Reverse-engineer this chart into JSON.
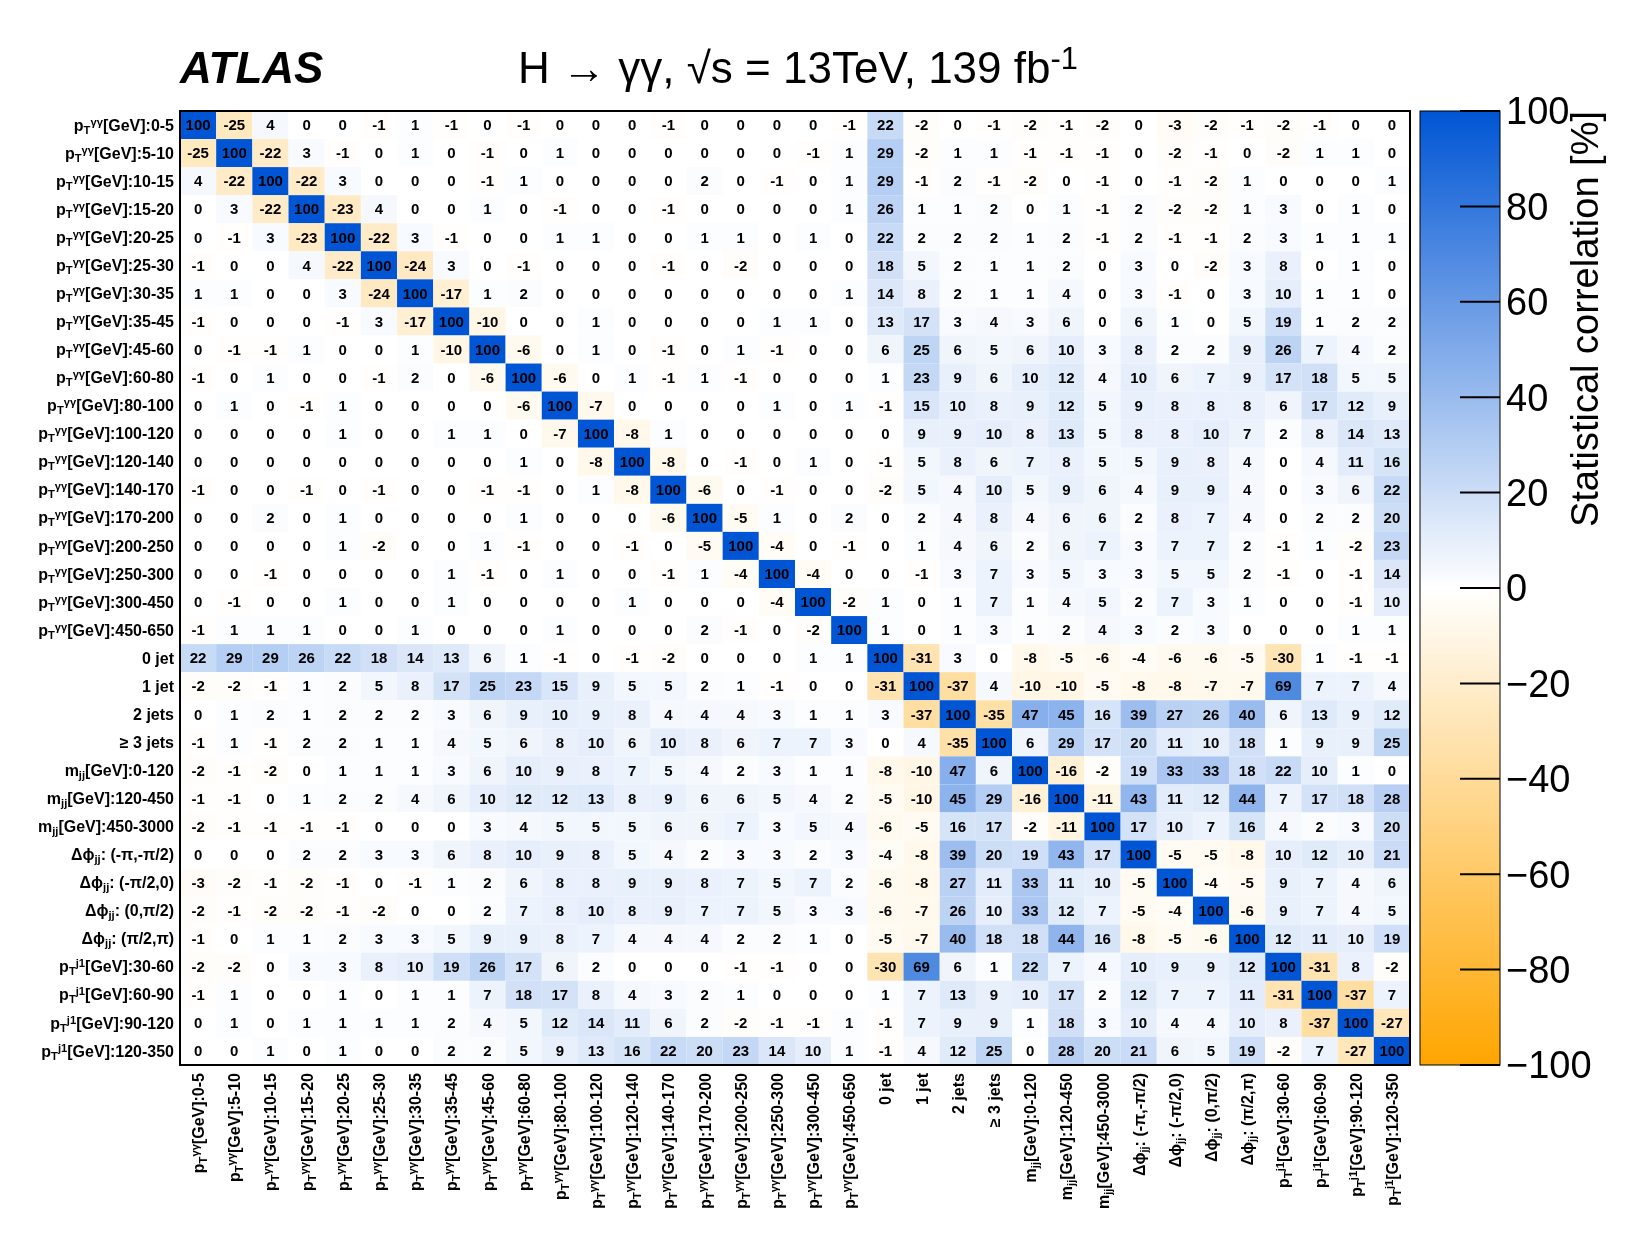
{
  "chart_data": {
    "type": "heatmap",
    "title": "H → γγ, √s = 13TeV, 139 fb$^{-1}$",
    "annotations": [
      "ATLAS"
    ],
    "clabel": "Statistical correlation [%]",
    "categories": [
      "p$_{T}$$^{γγ}$[GeV]:0-5",
      "p$_{T}$$^{γγ}$[GeV]:5-10",
      "p$_{T}$$^{γγ}$[GeV]:10-15",
      "p$_{T}$$^{γγ}$[GeV]:15-20",
      "p$_{T}$$^{γγ}$[GeV]:20-25",
      "p$_{T}$$^{γγ}$[GeV]:25-30",
      "p$_{T}$$^{γγ}$[GeV]:30-35",
      "p$_{T}$$^{γγ}$[GeV]:35-45",
      "p$_{T}$$^{γγ}$[GeV]:45-60",
      "p$_{T}$$^{γγ}$[GeV]:60-80",
      "p$_{T}$$^{γγ}$[GeV]:80-100",
      "p$_{T}$$^{γγ}$[GeV]:100-120",
      "p$_{T}$$^{γγ}$[GeV]:120-140",
      "p$_{T}$$^{γγ}$[GeV]:140-170",
      "p$_{T}$$^{γγ}$[GeV]:170-200",
      "p$_{T}$$^{γγ}$[GeV]:200-250",
      "p$_{T}$$^{γγ}$[GeV]:250-300",
      "p$_{T}$$^{γγ}$[GeV]:300-450",
      "p$_{T}$$^{γγ}$[GeV]:450-650",
      "0 jet",
      "1 jet",
      "2 jets",
      "≥ 3 jets",
      "m$_{jj}$[GeV]:0-120",
      "m$_{jj}$[GeV]:120-450",
      "m$_{jj}$[GeV]:450-3000",
      "Δϕ$_{jj}$: (-π,-π/2)",
      "Δϕ$_{jj}$: (-π/2,0)",
      "Δϕ$_{jj}$: (0,π/2)",
      "Δϕ$_{jj}$: (π/2,π)",
      "p$_{T}$$^{j1}$[GeV]:30-60",
      "p$_{T}$$^{j1}$[GeV]:60-90",
      "p$_{T}$$^{j1}$[GeV]:90-120",
      "p$_{T}$$^{j1}$[GeV]:120-350"
    ],
    "y_categories": [
      "p$_{T}$$^{γγ}$[GeV]:0-5",
      "p$_{T}$$^{γγ}$[GeV]:5-10",
      "p$_{T}$$^{γγ}$[GeV]:10-15",
      "p$_{T}$$^{γγ}$[GeV]:15-20",
      "p$_{T}$$^{γγ}$[GeV]:20-25",
      "p$_{T}$$^{γγ}$[GeV]:25-30",
      "p$_{T}$$^{γγ}$[GeV]:30-35",
      "p$_{T}$$^{γγ}$[GeV]:35-45",
      "p$_{T}$$^{γγ}$[GeV]:45-60",
      "p$_{T}$$^{γγ}$[GeV]:60-80",
      "p$_{T}$$^{γγ}$[GeV]:80-100",
      "p$_{T}$$^{γγ}$[GeV]:100-120",
      "p$_{T}$$^{γγ}$[GeV]:120-140",
      "p$_{T}$$^{γγ}$[GeV]:140-170",
      "p$_{T}$$^{γγ}$[GeV]:170-200",
      "p$_{T}$$^{γγ}$[GeV]:200-250",
      "p$_{T}$$^{γγ}$[GeV]:250-300",
      "p$_{T}$$^{γγ}$[GeV]:300-450",
      "p$_{T}$$^{γγ}$[GeV]:450-650",
      "0 jet",
      "1 jet",
      "2 jets",
      "≥ 3 jets",
      "m$_{jj}$[GeV]:0-120",
      "m$_{jj}$[GeV]:120-450",
      "m$_{jj}$[GeV]:450-3000",
      "Δϕ$_{jj}$: (-π,-π/2)",
      "Δϕ$_{jj}$: (-π/2,0)",
      "Δϕ$_{jj}$: (0,π/2)",
      "Δϕ$_{jj}$: (π/2,π)",
      "p$_{T}$$^{j1}$[GeV]:30-60",
      "p$_{T}$$^{j1}$[GeV]:60-90",
      "p$_{T}$$^{j1}$[GeV]:90-120",
      "p$_{T}$$^{j1}$[GeV]:120-350"
    ],
    "cells": [
      [
        100,
        -25,
        4,
        0,
        0,
        -1,
        1,
        -1,
        0,
        -1,
        0,
        0,
        0,
        -1,
        0,
        0,
        0,
        0,
        -1,
        22,
        -2,
        0,
        -1,
        -2,
        -1,
        -2,
        0,
        -3,
        -2,
        -1,
        -2,
        -1,
        0,
        0
      ],
      [
        -25,
        100,
        -22,
        3,
        -1,
        0,
        1,
        0,
        -1,
        0,
        1,
        0,
        0,
        0,
        0,
        0,
        0,
        -1,
        1,
        29,
        -2,
        1,
        1,
        -1,
        -1,
        -1,
        0,
        -2,
        -1,
        0,
        -2,
        1,
        1,
        0
      ],
      [
        4,
        -22,
        100,
        -22,
        3,
        0,
        0,
        0,
        -1,
        1,
        0,
        0,
        0,
        0,
        2,
        0,
        -1,
        0,
        1,
        29,
        -1,
        2,
        -1,
        -2,
        0,
        -1,
        0,
        -1,
        -2,
        1,
        0,
        0,
        0,
        1
      ],
      [
        0,
        3,
        -22,
        100,
        -23,
        4,
        0,
        0,
        1,
        0,
        -1,
        0,
        0,
        -1,
        0,
        0,
        0,
        0,
        1,
        26,
        1,
        1,
        2,
        0,
        1,
        -1,
        2,
        -2,
        -2,
        1,
        3,
        0,
        1,
        0
      ],
      [
        0,
        -1,
        3,
        -23,
        100,
        -22,
        3,
        -1,
        0,
        0,
        1,
        1,
        0,
        0,
        1,
        1,
        0,
        1,
        0,
        22,
        2,
        2,
        2,
        1,
        2,
        -1,
        2,
        -1,
        -1,
        2,
        3,
        1,
        1,
        1
      ],
      [
        -1,
        0,
        0,
        4,
        -22,
        100,
        -24,
        3,
        0,
        -1,
        0,
        0,
        0,
        -1,
        0,
        -2,
        0,
        0,
        0,
        18,
        5,
        2,
        1,
        1,
        2,
        0,
        3,
        0,
        -2,
        3,
        8,
        0,
        1,
        0
      ],
      [
        1,
        1,
        0,
        0,
        3,
        -24,
        100,
        -17,
        1,
        2,
        0,
        0,
        0,
        0,
        0,
        0,
        0,
        0,
        1,
        14,
        8,
        2,
        1,
        1,
        4,
        0,
        3,
        -1,
        0,
        3,
        10,
        1,
        1,
        0
      ],
      [
        -1,
        0,
        0,
        0,
        -1,
        3,
        -17,
        100,
        -10,
        0,
        0,
        1,
        0,
        0,
        0,
        0,
        1,
        1,
        0,
        13,
        17,
        3,
        4,
        3,
        6,
        0,
        6,
        1,
        0,
        5,
        19,
        1,
        2,
        2
      ],
      [
        0,
        -1,
        -1,
        1,
        0,
        0,
        1,
        -10,
        100,
        -6,
        0,
        1,
        0,
        -1,
        0,
        1,
        -1,
        0,
        0,
        6,
        25,
        6,
        5,
        6,
        10,
        3,
        8,
        2,
        2,
        9,
        26,
        7,
        4,
        2
      ],
      [
        -1,
        0,
        1,
        0,
        0,
        -1,
        2,
        0,
        -6,
        100,
        -6,
        0,
        1,
        -1,
        1,
        -1,
        0,
        0,
        0,
        1,
        23,
        9,
        6,
        10,
        12,
        4,
        10,
        6,
        7,
        9,
        17,
        18,
        5,
        5
      ],
      [
        0,
        1,
        0,
        -1,
        1,
        0,
        0,
        0,
        0,
        -6,
        100,
        -7,
        0,
        0,
        0,
        0,
        1,
        0,
        1,
        -1,
        15,
        10,
        8,
        9,
        12,
        5,
        9,
        8,
        8,
        8,
        6,
        17,
        12,
        9
      ],
      [
        0,
        0,
        0,
        0,
        1,
        0,
        0,
        1,
        1,
        0,
        -7,
        100,
        -8,
        1,
        0,
        0,
        0,
        0,
        0,
        0,
        9,
        9,
        10,
        8,
        13,
        5,
        8,
        8,
        10,
        7,
        2,
        8,
        14,
        13
      ],
      [
        0,
        0,
        0,
        0,
        0,
        0,
        0,
        0,
        0,
        1,
        0,
        -8,
        100,
        -8,
        0,
        -1,
        0,
        1,
        0,
        -1,
        5,
        8,
        6,
        7,
        8,
        5,
        5,
        9,
        8,
        4,
        0,
        4,
        11,
        16
      ],
      [
        -1,
        0,
        0,
        -1,
        0,
        -1,
        0,
        0,
        -1,
        -1,
        0,
        1,
        -8,
        100,
        -6,
        0,
        -1,
        0,
        0,
        -2,
        5,
        4,
        10,
        5,
        9,
        6,
        4,
        9,
        9,
        4,
        0,
        3,
        6,
        22
      ],
      [
        0,
        0,
        2,
        0,
        1,
        0,
        0,
        0,
        0,
        1,
        0,
        0,
        0,
        -6,
        100,
        -5,
        1,
        0,
        2,
        0,
        2,
        4,
        8,
        4,
        6,
        6,
        2,
        8,
        7,
        4,
        0,
        2,
        2,
        20
      ],
      [
        0,
        0,
        0,
        0,
        1,
        -2,
        0,
        0,
        1,
        -1,
        0,
        0,
        -1,
        0,
        -5,
        100,
        -4,
        0,
        -1,
        0,
        1,
        4,
        6,
        2,
        6,
        7,
        3,
        7,
        7,
        2,
        -1,
        1,
        -2,
        23
      ],
      [
        0,
        0,
        -1,
        0,
        0,
        0,
        0,
        1,
        -1,
        0,
        1,
        0,
        0,
        -1,
        1,
        -4,
        100,
        -4,
        0,
        0,
        -1,
        3,
        7,
        3,
        5,
        3,
        3,
        5,
        5,
        2,
        -1,
        0,
        -1,
        14
      ],
      [
        0,
        -1,
        0,
        0,
        1,
        0,
        0,
        1,
        0,
        0,
        0,
        0,
        1,
        0,
        0,
        0,
        -4,
        100,
        -2,
        1,
        0,
        1,
        7,
        1,
        4,
        5,
        2,
        7,
        3,
        1,
        0,
        0,
        -1,
        10
      ],
      [
        -1,
        1,
        1,
        1,
        0,
        0,
        1,
        0,
        0,
        0,
        1,
        0,
        0,
        0,
        2,
        -1,
        0,
        -2,
        100,
        1,
        0,
        1,
        3,
        1,
        2,
        4,
        3,
        2,
        3,
        0,
        0,
        0,
        1,
        1
      ],
      [
        22,
        29,
        29,
        26,
        22,
        18,
        14,
        13,
        6,
        1,
        -1,
        0,
        -1,
        -2,
        0,
        0,
        0,
        1,
        1,
        100,
        -31,
        3,
        0,
        -8,
        -5,
        -6,
        -4,
        -6,
        -6,
        -5,
        -30,
        1,
        -1,
        -1
      ],
      [
        -2,
        -2,
        -1,
        1,
        2,
        5,
        8,
        17,
        25,
        23,
        15,
        9,
        5,
        5,
        2,
        1,
        -1,
        0,
        0,
        -31,
        100,
        -37,
        4,
        -10,
        -10,
        -5,
        -8,
        -8,
        -7,
        -7,
        69,
        7,
        7,
        4
      ],
      [
        0,
        1,
        2,
        1,
        2,
        2,
        2,
        3,
        6,
        9,
        10,
        9,
        8,
        4,
        4,
        4,
        3,
        1,
        1,
        3,
        -37,
        100,
        -35,
        47,
        45,
        16,
        39,
        27,
        26,
        40,
        6,
        13,
        9,
        12
      ],
      [
        -1,
        1,
        -1,
        2,
        2,
        1,
        1,
        4,
        5,
        6,
        8,
        10,
        6,
        10,
        8,
        6,
        7,
        7,
        3,
        0,
        4,
        -35,
        100,
        6,
        29,
        17,
        20,
        11,
        10,
        18,
        1,
        9,
        9,
        25
      ],
      [
        -2,
        -1,
        -2,
        0,
        1,
        1,
        1,
        3,
        6,
        10,
        9,
        8,
        7,
        5,
        4,
        2,
        3,
        1,
        1,
        -8,
        -10,
        47,
        6,
        100,
        -16,
        -2,
        19,
        33,
        33,
        18,
        22,
        10,
        1,
        0
      ],
      [
        -1,
        -1,
        0,
        1,
        2,
        2,
        4,
        6,
        10,
        12,
        12,
        13,
        8,
        9,
        6,
        6,
        5,
        4,
        2,
        -5,
        -10,
        45,
        29,
        -16,
        100,
        -11,
        43,
        11,
        12,
        44,
        7,
        17,
        18,
        28
      ],
      [
        -2,
        -1,
        -1,
        -1,
        -1,
        0,
        0,
        0,
        3,
        4,
        5,
        5,
        5,
        6,
        6,
        7,
        3,
        5,
        4,
        -6,
        -5,
        16,
        17,
        -2,
        -11,
        100,
        17,
        10,
        7,
        16,
        4,
        2,
        3,
        20
      ],
      [
        0,
        0,
        0,
        2,
        2,
        3,
        3,
        6,
        8,
        10,
        9,
        8,
        5,
        4,
        2,
        3,
        3,
        2,
        3,
        -4,
        -8,
        39,
        20,
        19,
        43,
        17,
        100,
        -5,
        -5,
        -8,
        10,
        12,
        10,
        21
      ],
      [
        -3,
        -2,
        -1,
        -2,
        -1,
        0,
        -1,
        1,
        2,
        6,
        8,
        8,
        9,
        9,
        8,
        7,
        5,
        7,
        2,
        -6,
        -8,
        27,
        11,
        33,
        11,
        10,
        -5,
        100,
        -4,
        -5,
        9,
        7,
        4,
        6
      ],
      [
        -2,
        -1,
        -2,
        -2,
        -1,
        -2,
        0,
        0,
        2,
        7,
        8,
        10,
        8,
        9,
        7,
        7,
        5,
        3,
        3,
        -6,
        -7,
        26,
        10,
        33,
        12,
        7,
        -5,
        -4,
        100,
        -6,
        9,
        7,
        4,
        5
      ],
      [
        -1,
        0,
        1,
        1,
        2,
        3,
        3,
        5,
        9,
        9,
        8,
        7,
        4,
        4,
        4,
        2,
        2,
        1,
        0,
        -5,
        -7,
        40,
        18,
        18,
        44,
        16,
        -8,
        -5,
        -6,
        100,
        12,
        11,
        10,
        19
      ],
      [
        -2,
        -2,
        0,
        3,
        3,
        8,
        10,
        19,
        26,
        17,
        6,
        2,
        0,
        0,
        0,
        -1,
        -1,
        0,
        0,
        -30,
        69,
        6,
        1,
        22,
        7,
        4,
        10,
        9,
        9,
        12,
        100,
        -31,
        8,
        -2
      ],
      [
        -1,
        1,
        0,
        0,
        1,
        0,
        1,
        1,
        7,
        18,
        17,
        8,
        4,
        3,
        2,
        1,
        0,
        0,
        0,
        1,
        7,
        13,
        9,
        10,
        17,
        2,
        12,
        7,
        7,
        11,
        -31,
        100,
        -37,
        7
      ],
      [
        0,
        1,
        0,
        1,
        1,
        1,
        1,
        2,
        4,
        5,
        12,
        14,
        11,
        6,
        2,
        -2,
        -1,
        -1,
        1,
        -1,
        7,
        9,
        9,
        1,
        18,
        3,
        10,
        4,
        4,
        10,
        8,
        -37,
        100,
        -27
      ],
      [
        0,
        0,
        1,
        0,
        1,
        0,
        0,
        2,
        2,
        5,
        9,
        13,
        16,
        22,
        20,
        23,
        14,
        10,
        1,
        -1,
        4,
        12,
        25,
        0,
        28,
        20,
        21,
        6,
        5,
        19,
        -2,
        7,
        -27,
        100
      ]
    ],
    "data_labels": true,
    "clim": [
      -100,
      100
    ],
    "cticks": [
      {
        "value": -100,
        "label": "−100"
      },
      {
        "value": -80,
        "label": "−80"
      },
      {
        "value": -60,
        "label": "−60"
      },
      {
        "value": -40,
        "label": "−40"
      },
      {
        "value": -20,
        "label": "−20"
      },
      0,
      20,
      40,
      60,
      80,
      100
    ]
  }
}
